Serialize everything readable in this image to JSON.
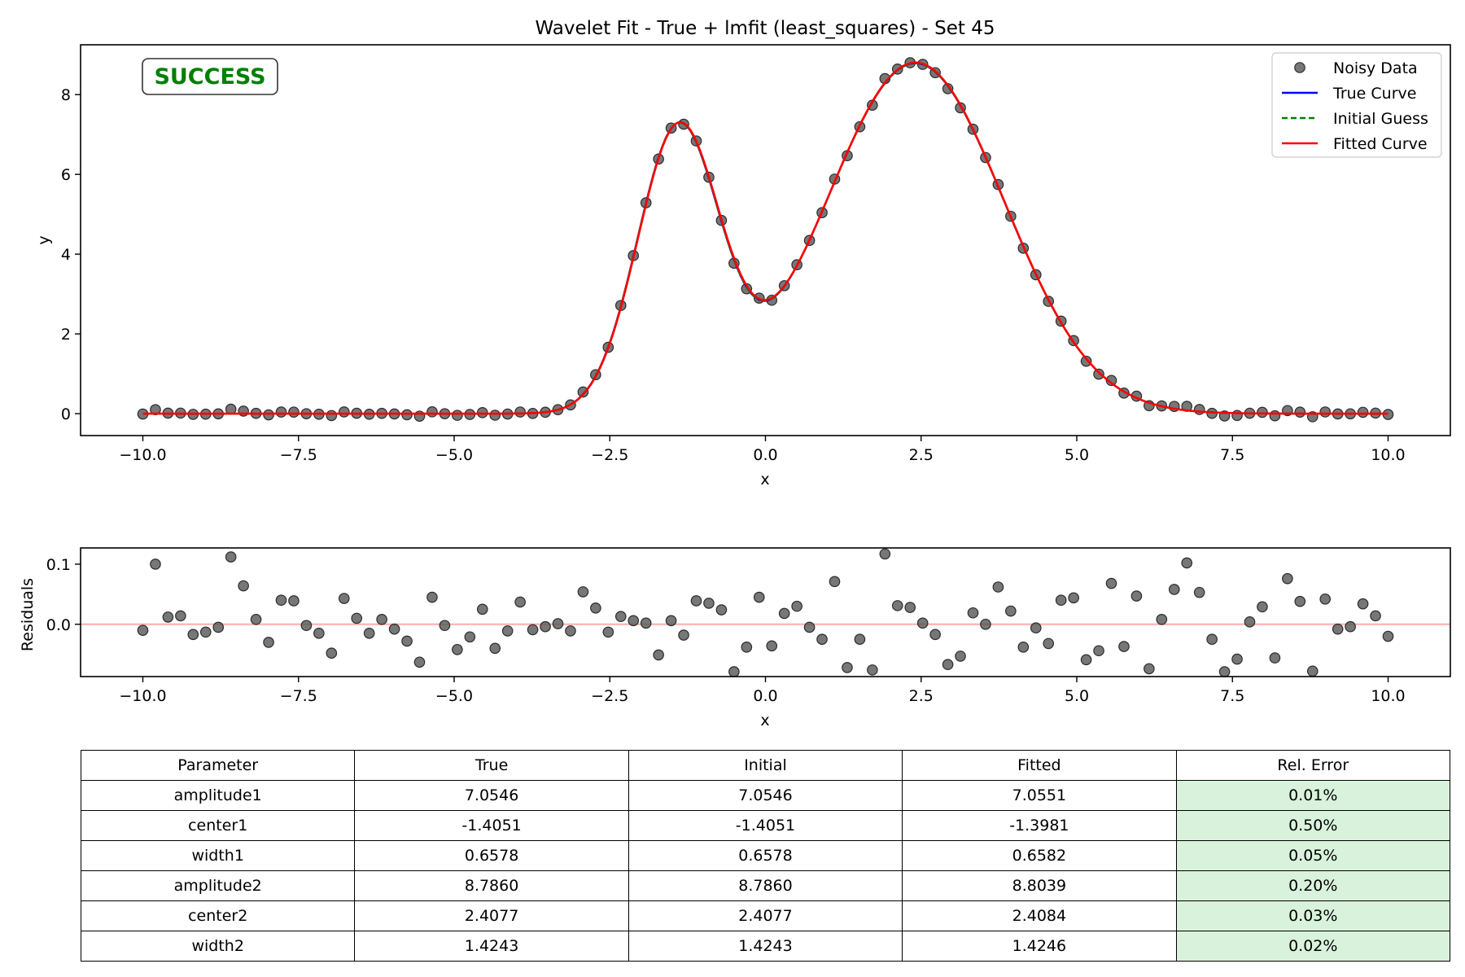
{
  "chart_data": [
    {
      "type": "line",
      "title": "Wavelet Fit - True + lmfit (least_squares) - Set 45",
      "xlabel": "x",
      "ylabel": "y",
      "xlim": [
        -11.0,
        11.0
      ],
      "ylim": [
        -0.55,
        9.25
      ],
      "xticks": [
        -10.0,
        -7.5,
        -5.0,
        -2.5,
        0.0,
        2.5,
        5.0,
        7.5,
        10.0
      ],
      "xtick_labels": [
        "−10.0",
        "−7.5",
        "−5.0",
        "−2.5",
        "0.0",
        "2.5",
        "5.0",
        "7.5",
        "10.0"
      ],
      "yticks": [
        0,
        2,
        4,
        6,
        8
      ],
      "ytick_labels": [
        "0",
        "2",
        "4",
        "6",
        "8"
      ],
      "grid": false,
      "legend_position": "top-right",
      "annotation": {
        "text": "SUCCESS",
        "color": "#008000"
      },
      "model": "double-gaussian",
      "parameters": {
        "true": {
          "amplitude1": 7.0546,
          "center1": -1.4051,
          "width1": 0.6578,
          "amplitude2": 8.786,
          "center2": 2.4077,
          "width2": 1.4243
        },
        "fitted": {
          "amplitude1": 7.0551,
          "center1": -1.3981,
          "width1": 0.6582,
          "amplitude2": 8.8039,
          "center2": 2.4084,
          "width2": 1.4246
        }
      },
      "x_range": [
        -10.0,
        10.0
      ],
      "n_points": 100,
      "series": [
        {
          "name": "Noisy Data",
          "style": "markers",
          "color": "#555555"
        },
        {
          "name": "True Curve",
          "style": "solid",
          "color": "#0000ff"
        },
        {
          "name": "Initial Guess",
          "style": "dashed",
          "color": "#008000"
        },
        {
          "name": "Fitted Curve",
          "style": "solid",
          "color": "#ff0000"
        }
      ]
    },
    {
      "type": "scatter",
      "xlabel": "x",
      "ylabel": "Residuals",
      "xlim": [
        -11.0,
        11.0
      ],
      "ylim": [
        -0.087,
        0.127
      ],
      "xticks": [
        -10.0,
        -7.5,
        -5.0,
        -2.5,
        0.0,
        2.5,
        5.0,
        7.5,
        10.0
      ],
      "xtick_labels": [
        "−10.0",
        "−7.5",
        "−5.0",
        "−2.5",
        "0.0",
        "2.5",
        "5.0",
        "7.5",
        "10.0"
      ],
      "yticks": [
        0.0,
        0.1
      ],
      "ytick_labels": [
        "0.0",
        "0.1"
      ],
      "zero_line_color": "#ffb3b3",
      "residuals": [
        -0.01,
        0.1,
        0.012,
        0.014,
        -0.017,
        -0.013,
        -0.005,
        0.112,
        0.064,
        0.008,
        -0.03,
        0.04,
        0.039,
        -0.002,
        -0.015,
        -0.048,
        0.043,
        0.01,
        -0.015,
        0.008,
        -0.008,
        -0.028,
        -0.063,
        0.045,
        -0.002,
        -0.042,
        -0.021,
        0.025,
        -0.04,
        -0.011,
        0.037,
        -0.009,
        -0.004,
        0.001,
        -0.011,
        0.054,
        0.027,
        -0.013,
        0.013,
        0.006,
        0.002,
        -0.051,
        0.006,
        -0.018,
        0.039,
        0.035,
        0.024,
        -0.079,
        -0.038,
        0.045,
        -0.036,
        0.018,
        0.03,
        -0.005,
        -0.025,
        0.071,
        -0.072,
        -0.025,
        -0.076,
        0.117,
        0.031,
        0.028,
        0.002,
        -0.017,
        -0.067,
        -0.053,
        0.019,
        0.0,
        0.062,
        0.022,
        -0.038,
        -0.006,
        -0.032,
        0.04,
        0.044,
        -0.059,
        -0.044,
        0.068,
        -0.037,
        0.047,
        -0.074,
        0.008,
        0.058,
        0.102,
        0.053,
        -0.025,
        -0.079,
        -0.058,
        0.004,
        0.029,
        -0.056,
        0.076,
        0.038,
        -0.078,
        0.042,
        -0.008,
        -0.004,
        0.034,
        0.014,
        -0.02
      ]
    }
  ],
  "table": {
    "headers": [
      "Parameter",
      "True",
      "Initial",
      "Fitted",
      "Rel. Error"
    ],
    "rows": [
      [
        "amplitude1",
        "7.0546",
        "7.0546",
        "7.0551",
        "0.01%"
      ],
      [
        "center1",
        "-1.4051",
        "-1.4051",
        "-1.3981",
        "0.50%"
      ],
      [
        "width1",
        "0.6578",
        "0.6578",
        "0.6582",
        "0.05%"
      ],
      [
        "amplitude2",
        "8.7860",
        "8.7860",
        "8.8039",
        "0.20%"
      ],
      [
        "center2",
        "2.4077",
        "2.4077",
        "2.4084",
        "0.03%"
      ],
      [
        "width2",
        "1.4243",
        "1.4243",
        "1.4246",
        "0.02%"
      ]
    ],
    "error_cell_color": "#d9f2dc"
  }
}
